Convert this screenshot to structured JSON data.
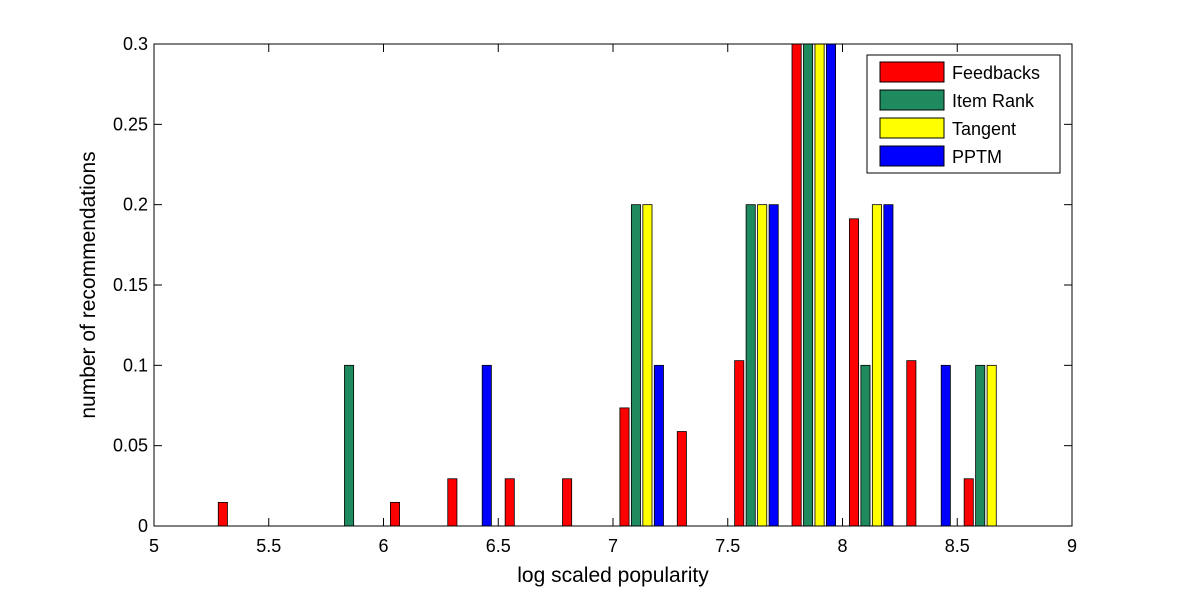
{
  "chart_data": {
    "type": "bar",
    "title": "",
    "xlabel": "log scaled popularity",
    "ylabel": "number of recommendations",
    "xlim": [
      5,
      9
    ],
    "ylim": [
      0,
      0.3
    ],
    "xticks": [
      "5",
      "5.5",
      "6",
      "6.5",
      "7",
      "7.5",
      "8",
      "8.5",
      "9"
    ],
    "yticks": [
      "0",
      "0.05",
      "0.1",
      "0.15",
      "0.2",
      "0.25",
      "0.3"
    ],
    "grid": false,
    "legend_position": "top-right",
    "bin_centers": [
      5.125,
      5.375,
      5.625,
      5.875,
      6.125,
      6.375,
      6.625,
      6.875,
      7.125,
      7.375,
      7.625,
      7.875,
      8.125,
      8.375,
      8.625,
      8.875
    ],
    "series": [
      {
        "name": "Feedbacks",
        "color": "#ff0000",
        "values": [
          0,
          0.0147,
          0,
          0,
          0.0147,
          0.0294,
          0.0294,
          0.0294,
          0.0735,
          0.0588,
          0.1029,
          0.3,
          0.1912,
          0.1029,
          0.0294,
          0
        ]
      },
      {
        "name": "Item Rank",
        "color": "#1f8a5e",
        "values": [
          0,
          0,
          0,
          0.1,
          0,
          0,
          0,
          0,
          0.2,
          0,
          0.2,
          0.3,
          0.1,
          0,
          0.1,
          0
        ]
      },
      {
        "name": "Tangent",
        "color": "#ffff00",
        "values": [
          0,
          0,
          0,
          0,
          0,
          0,
          0,
          0,
          0.2,
          0,
          0.2,
          0.3,
          0.2,
          0,
          0.1,
          0
        ]
      },
      {
        "name": "PPTM",
        "color": "#0000ff",
        "values": [
          0,
          0,
          0,
          0,
          0,
          0.1,
          0,
          0,
          0.1,
          0,
          0.2,
          0.3,
          0.2,
          0.1,
          0,
          0
        ]
      }
    ]
  }
}
